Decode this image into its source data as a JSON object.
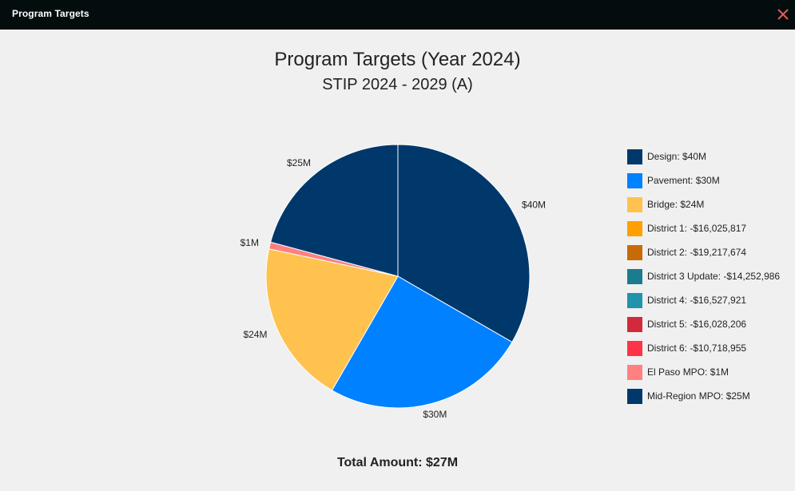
{
  "window": {
    "title": "Program Targets",
    "close_icon": "close-icon"
  },
  "colors": {
    "titlebar": "#030d0d",
    "close": "#e05a5a",
    "background": "#f0f0f0"
  },
  "chart_data": {
    "type": "pie",
    "title": "Program Targets (Year 2024)",
    "subtitle": "STIP 2024 - 2029 (A)",
    "legend_position": "right",
    "slices": [
      {
        "label": "Design",
        "value": 40,
        "display": "$40M",
        "color": "#00386b"
      },
      {
        "label": "Pavement",
        "value": 30,
        "display": "$30M",
        "color": "#0081ff"
      },
      {
        "label": "Bridge",
        "value": 24,
        "display": "$24M",
        "color": "#ffc24f"
      },
      {
        "label": "El Paso MPO",
        "value": 1,
        "display": "$1M",
        "color": "#ff8080"
      },
      {
        "label": "Mid-Region MPO",
        "value": 25,
        "display": "$25M",
        "color": "#00386b"
      }
    ],
    "legend": [
      {
        "text": "Design: $40M",
        "color": "#00386b"
      },
      {
        "text": "Pavement: $30M",
        "color": "#0081ff"
      },
      {
        "text": "Bridge: $24M",
        "color": "#ffc24f"
      },
      {
        "text": "District 1: -$16,025,817",
        "color": "#ff9f00"
      },
      {
        "text": "District 2: -$19,217,674",
        "color": "#c86a06"
      },
      {
        "text": "District 3 Update: -$14,252,986",
        "color": "#1b7b8f"
      },
      {
        "text": "District 4: -$16,527,921",
        "color": "#2193ab"
      },
      {
        "text": "District 5: -$16,028,206",
        "color": "#d12a3d"
      },
      {
        "text": "District 6: -$10,718,955",
        "color": "#ff3347"
      },
      {
        "text": "El Paso MPO: $1M",
        "color": "#ff8080"
      },
      {
        "text": "Mid-Region MPO: $25M",
        "color": "#00386b"
      }
    ],
    "total": "Total Amount: $27M"
  }
}
